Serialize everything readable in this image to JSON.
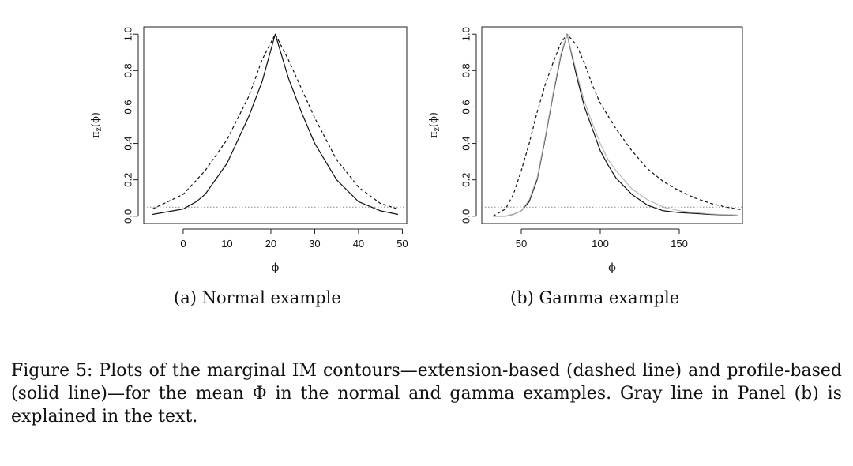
{
  "chart_data": [
    {
      "type": "line",
      "panel_label": "(a)",
      "subcaption": "Normal example",
      "xlabel": "ϕ",
      "ylabel": "π_z(ϕ)",
      "xlim": [
        -9,
        51
      ],
      "ylim": [
        -0.04,
        1.04
      ],
      "xticks": [
        0,
        10,
        20,
        30,
        40,
        50
      ],
      "yticks": [
        0.0,
        0.2,
        0.4,
        0.6,
        0.8,
        1.0
      ],
      "reference_line": {
        "y": 0.05,
        "style": "dotted",
        "color": "#888888"
      },
      "series": [
        {
          "style": "dashed",
          "color": "#111111",
          "x": [
            -7,
            0,
            5,
            10,
            15,
            18,
            21,
            24,
            27,
            30,
            35,
            40,
            45,
            49
          ],
          "y": [
            0.04,
            0.12,
            0.25,
            0.42,
            0.66,
            0.86,
            1.0,
            0.86,
            0.7,
            0.54,
            0.31,
            0.16,
            0.07,
            0.04
          ]
        },
        {
          "style": "solid",
          "color": "#111111",
          "x": [
            -7,
            0,
            3,
            5,
            10,
            15,
            18,
            21,
            24,
            27,
            30,
            35,
            40,
            45,
            49
          ],
          "y": [
            0.01,
            0.04,
            0.08,
            0.12,
            0.29,
            0.55,
            0.74,
            1.0,
            0.76,
            0.57,
            0.4,
            0.2,
            0.08,
            0.03,
            0.01
          ]
        }
      ]
    },
    {
      "type": "line",
      "panel_label": "(b)",
      "subcaption": "Gamma example",
      "xlabel": "ϕ",
      "ylabel": "π_z(ϕ)",
      "xlim": [
        25,
        190
      ],
      "ylim": [
        -0.04,
        1.04
      ],
      "xticks": [
        50,
        100,
        150
      ],
      "yticks": [
        0.0,
        0.2,
        0.4,
        0.6,
        0.8,
        1.0
      ],
      "reference_line": {
        "y": 0.05,
        "style": "dotted",
        "color": "#888888"
      },
      "series": [
        {
          "style": "dashed",
          "color": "#111111",
          "x": [
            32,
            40,
            45,
            50,
            55,
            60,
            65,
            70,
            75,
            79,
            85,
            90,
            95,
            100,
            105,
            110,
            120,
            130,
            140,
            150,
            160,
            170,
            180,
            190
          ],
          "y": [
            0.0,
            0.04,
            0.12,
            0.25,
            0.4,
            0.57,
            0.72,
            0.84,
            0.95,
            1.0,
            0.94,
            0.84,
            0.72,
            0.62,
            0.55,
            0.48,
            0.36,
            0.26,
            0.19,
            0.14,
            0.1,
            0.07,
            0.05,
            0.035
          ]
        },
        {
          "style": "solid",
          "color": "#111111",
          "x": [
            32,
            40,
            45,
            50,
            55,
            60,
            65,
            70,
            75,
            79,
            85,
            90,
            95,
            100,
            105,
            110,
            120,
            130,
            140,
            150,
            160,
            170,
            187
          ],
          "y": [
            0.0,
            0.0,
            0.01,
            0.03,
            0.08,
            0.2,
            0.42,
            0.66,
            0.88,
            1.0,
            0.77,
            0.6,
            0.48,
            0.36,
            0.28,
            0.21,
            0.12,
            0.06,
            0.03,
            0.02,
            0.015,
            0.01,
            0.005
          ]
        },
        {
          "style": "solid",
          "color": "#b3b3b3",
          "x": [
            32,
            40,
            45,
            50,
            55,
            60,
            65,
            70,
            75,
            79,
            85,
            90,
            95,
            100,
            105,
            110,
            120,
            130,
            140,
            150,
            160,
            170,
            187
          ],
          "y": [
            0.0,
            0.0,
            0.01,
            0.03,
            0.09,
            0.21,
            0.43,
            0.67,
            0.89,
            1.0,
            0.79,
            0.63,
            0.51,
            0.4,
            0.31,
            0.25,
            0.15,
            0.09,
            0.05,
            0.03,
            0.02,
            0.012,
            0.006
          ]
        }
      ]
    }
  ],
  "caption": "Figure 5: Plots of the marginal IM contours—extension-based (dashed line) and profile-based (solid line)—for the mean Φ in the normal and gamma examples.  Gray line in Panel (b) is explained in the text."
}
